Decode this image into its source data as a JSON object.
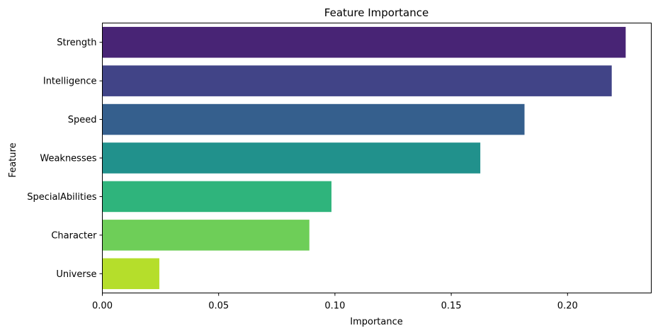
{
  "chart_data": {
    "type": "bar",
    "orientation": "horizontal",
    "title": "Feature Importance",
    "xlabel": "Importance",
    "ylabel": "Feature",
    "categories": [
      "Strength",
      "Intelligence",
      "Speed",
      "Weaknesses",
      "SpecialAbilities",
      "Character",
      "Universe"
    ],
    "values": [
      0.225,
      0.219,
      0.1815,
      0.1625,
      0.0985,
      0.089,
      0.0245
    ],
    "colors": [
      "#482475",
      "#414487",
      "#355f8d",
      "#21918c",
      "#2fb47c",
      "#6ece58",
      "#b5de2b"
    ],
    "xlim": [
      0,
      0.236
    ],
    "xticks": [
      0.0,
      0.05,
      0.1,
      0.15,
      0.2
    ],
    "xtick_labels": [
      "0.00",
      "0.05",
      "0.10",
      "0.15",
      "0.20"
    ],
    "grid": false,
    "legend": false
  }
}
